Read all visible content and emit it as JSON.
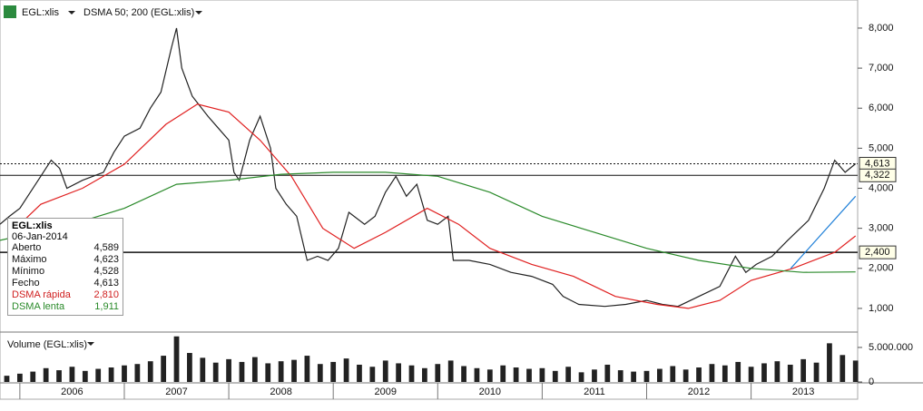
{
  "header": {
    "symbol": "EGL:xlis",
    "indicator": "DSMA 50; 200 (EGL:xlis)",
    "volume_label": "Volume (EGL:xlis)"
  },
  "chart_data": [
    {
      "type": "line",
      "xlim": [
        2005.81,
        2014.02
      ],
      "xticks": [
        2006,
        2007,
        2008,
        2009,
        2010,
        2011,
        2012,
        2013
      ],
      "ylim": [
        500,
        8520
      ],
      "yticks": [
        {
          "value": 1000,
          "label": "1,000"
        },
        {
          "value": 2000,
          "label": "2,000"
        },
        {
          "value": 3000,
          "label": "3,000"
        },
        {
          "value": 4000,
          "label": "4,000"
        },
        {
          "value": 5000,
          "label": "5,000"
        },
        {
          "value": 6000,
          "label": "6,000"
        },
        {
          "value": 7000,
          "label": "7,000"
        },
        {
          "value": 8000,
          "label": "8,000"
        }
      ],
      "series": [
        {
          "name": "EGL:xlis",
          "color": "#222222",
          "x": [
            2005.81,
            2005.9,
            2006.0,
            2006.1,
            2006.2,
            2006.3,
            2006.38,
            2006.45,
            2006.6,
            2006.8,
            2006.9,
            2007.0,
            2007.15,
            2007.25,
            2007.35,
            2007.45,
            2007.5,
            2007.55,
            2007.65,
            2007.8,
            2007.9,
            2008.0,
            2008.05,
            2008.1,
            2008.2,
            2008.3,
            2008.4,
            2008.45,
            2008.55,
            2008.65,
            2008.75,
            2008.85,
            2008.95,
            2009.05,
            2009.15,
            2009.3,
            2009.4,
            2009.5,
            2009.6,
            2009.7,
            2009.8,
            2009.9,
            2010.0,
            2010.1,
            2010.15,
            2010.3,
            2010.5,
            2010.7,
            2010.9,
            2011.1,
            2011.2,
            2011.35,
            2011.6,
            2011.8,
            2012.0,
            2012.15,
            2012.3,
            2012.5,
            2012.7,
            2012.85,
            2012.95,
            2013.05,
            2013.2,
            2013.35,
            2013.55,
            2013.7,
            2013.8,
            2013.9,
            2014.0
          ],
          "values": [
            3100,
            3300,
            3500,
            3900,
            4300,
            4700,
            4500,
            4000,
            4200,
            4400,
            4900,
            5300,
            5500,
            6000,
            6400,
            7500,
            8000,
            7000,
            6300,
            5800,
            5500,
            5200,
            4400,
            4200,
            5200,
            5800,
            5000,
            4000,
            3600,
            3300,
            2200,
            2300,
            2200,
            2500,
            3400,
            3100,
            3300,
            3900,
            4300,
            3800,
            4100,
            3200,
            3100,
            3300,
            2200,
            2200,
            2100,
            1900,
            1800,
            1600,
            1300,
            1100,
            1050,
            1100,
            1200,
            1100,
            1050,
            1300,
            1550,
            2300,
            1900,
            2100,
            2300,
            2700,
            3200,
            4000,
            4700,
            4400,
            4613
          ]
        },
        {
          "name": "DSMA rápida",
          "color": "#e02020",
          "x": [
            2006.0,
            2006.2,
            2006.6,
            2007.0,
            2007.4,
            2007.7,
            2008.0,
            2008.3,
            2008.6,
            2008.9,
            2009.2,
            2009.5,
            2009.9,
            2010.2,
            2010.5,
            2010.9,
            2011.3,
            2011.7,
            2012.1,
            2012.4,
            2012.7,
            2013.0,
            2013.4,
            2013.8,
            2014.0
          ],
          "values": [
            3100,
            3600,
            4000,
            4600,
            5600,
            6100,
            5900,
            5200,
            4300,
            3000,
            2500,
            2900,
            3500,
            3100,
            2500,
            2100,
            1800,
            1300,
            1100,
            1000,
            1200,
            1700,
            2000,
            2400,
            2810
          ]
        },
        {
          "name": "DSMA lenta",
          "color": "#2a8a2a",
          "x": [
            2005.81,
            2006.5,
            2007.0,
            2007.5,
            2008.0,
            2008.5,
            2009.0,
            2009.5,
            2010.0,
            2010.5,
            2011.0,
            2011.5,
            2012.0,
            2012.5,
            2013.0,
            2013.5,
            2014.0
          ],
          "values": [
            2700,
            3100,
            3500,
            4100,
            4200,
            4350,
            4400,
            4400,
            4300,
            3900,
            3300,
            2900,
            2500,
            2200,
            2000,
            1900,
            1911
          ]
        }
      ],
      "price_lines": [
        {
          "value": 4613,
          "label": "4,613"
        },
        {
          "value": 4322,
          "label": "4,322"
        },
        {
          "value": 2400,
          "label": "2,400"
        }
      ],
      "trendline": {
        "x": [
          2013.38,
          2014.0
        ],
        "values": [
          2000,
          3800
        ],
        "color": "#1e7fd8"
      }
    },
    {
      "type": "bar",
      "color": "#222222",
      "xlim": [
        2005.81,
        2014.02
      ],
      "ylim": [
        0,
        6700000
      ],
      "yticks": [
        0,
        {
          "value": 5000000,
          "label": "5.000.000"
        }
      ],
      "x": [
        2005.875,
        2006.0,
        2006.125,
        2006.25,
        2006.375,
        2006.5,
        2006.625,
        2006.75,
        2006.875,
        2007.0,
        2007.125,
        2007.25,
        2007.375,
        2007.5,
        2007.625,
        2007.75,
        2007.875,
        2008.0,
        2008.125,
        2008.25,
        2008.375,
        2008.5,
        2008.625,
        2008.75,
        2008.875,
        2009.0,
        2009.125,
        2009.25,
        2009.375,
        2009.5,
        2009.625,
        2009.75,
        2009.875,
        2010.0,
        2010.125,
        2010.25,
        2010.375,
        2010.5,
        2010.625,
        2010.75,
        2010.875,
        2011.0,
        2011.125,
        2011.25,
        2011.375,
        2011.5,
        2011.625,
        2011.75,
        2011.875,
        2012.0,
        2012.125,
        2012.25,
        2012.375,
        2012.5,
        2012.625,
        2012.75,
        2012.875,
        2013.0,
        2013.125,
        2013.25,
        2013.375,
        2013.5,
        2013.625,
        2013.75,
        2013.875,
        2014.0
      ],
      "values": [
        900000,
        1200000,
        1500000,
        2000000,
        1700000,
        2200000,
        1600000,
        1900000,
        2100000,
        2400000,
        2600000,
        3000000,
        3800000,
        6600000,
        4200000,
        3500000,
        2800000,
        3300000,
        2900000,
        3600000,
        2700000,
        3000000,
        3200000,
        3800000,
        2600000,
        2900000,
        3400000,
        2500000,
        2200000,
        3100000,
        2700000,
        2400000,
        2000000,
        2600000,
        3100000,
        2300000,
        2000000,
        1800000,
        2400000,
        2100000,
        1900000,
        2000000,
        1600000,
        2200000,
        1400000,
        1800000,
        2500000,
        1700000,
        1500000,
        1600000,
        1900000,
        2300000,
        1800000,
        2100000,
        2600000,
        2400000,
        2900000,
        2200000,
        2700000,
        3000000,
        2500000,
        3300000,
        2800000,
        5600000,
        3900000,
        3100000
      ]
    }
  ],
  "info": {
    "title": "EGL:xlis",
    "date": "06-Jan-2014",
    "rows": [
      [
        "Aberto",
        "4,589"
      ],
      [
        "Máximo",
        "4,623"
      ],
      [
        "Mínimo",
        "4,528"
      ],
      [
        "Fecho",
        "4,613"
      ],
      [
        "DSMA rápida",
        "2,810"
      ],
      [
        "DSMA lenta",
        "1,911"
      ]
    ]
  }
}
